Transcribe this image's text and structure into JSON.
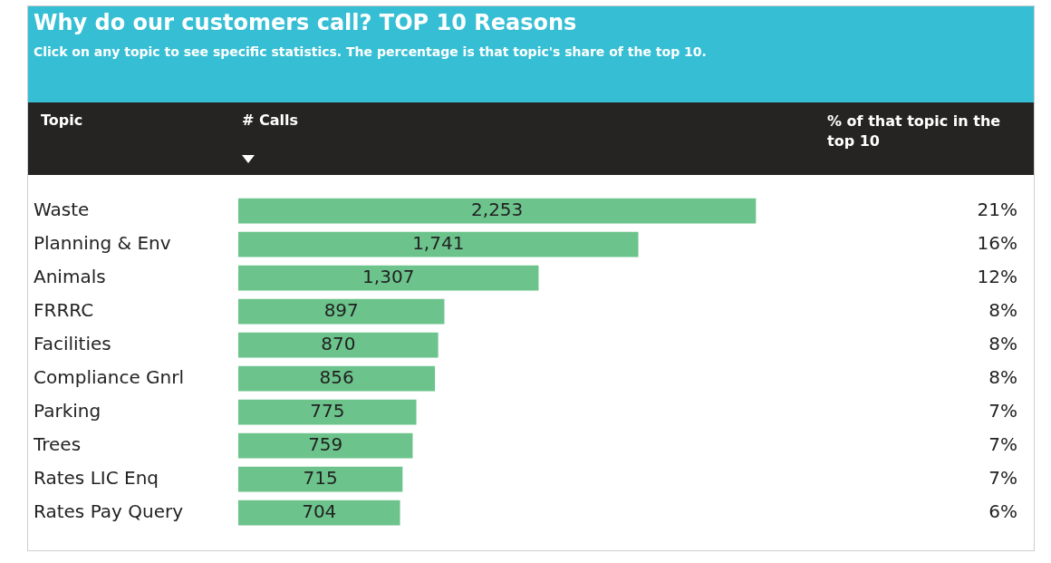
{
  "chart_data": {
    "type": "bar",
    "orientation": "horizontal",
    "title": "Why do our customers call? TOP 10 Reasons",
    "subtitle": "Click on any topic to see specific statistics. The percentage is that topic's share of the top 10.",
    "ylabel": "Topic",
    "xlabel": "# Calls",
    "categories": [
      "Waste",
      "Planning & Env",
      "Animals",
      "FRRRC",
      "Facilities",
      "Compliance Gnrl",
      "Parking",
      "Trees",
      "Rates LIC Enq",
      "Rates Pay Query"
    ],
    "values": [
      2253,
      1741,
      1307,
      897,
      870,
      856,
      775,
      759,
      715,
      704
    ],
    "value_labels": [
      "2,253",
      "1,741",
      "1,307",
      "897",
      "870",
      "856",
      "775",
      "759",
      "715",
      "704"
    ],
    "color": "#6cc48c",
    "grid": false,
    "tick_labels": "y",
    "annotations": [
      "% of that topic in the top 10",
      "21%",
      "16%",
      "12%",
      "8%",
      "8%",
      "8%",
      "7%",
      "7%",
      "7%",
      "6%"
    ]
  }
}
